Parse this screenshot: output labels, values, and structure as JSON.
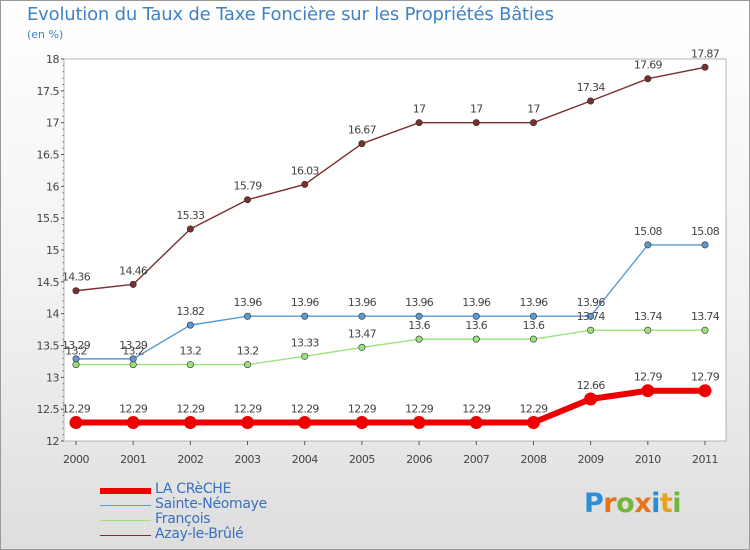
{
  "header": {
    "title": "Evolution du Taux de Taxe Foncière sur les Propriétés Bâties",
    "unit": "(en %)"
  },
  "brand": {
    "letters": [
      "P",
      "r",
      "o",
      "x",
      "i",
      "t",
      "i"
    ],
    "colors": [
      "#2a8fd8",
      "#e8731d",
      "#73b73a",
      "#e8731d",
      "#2a8fd8",
      "#e8a21d",
      "#73b73a"
    ]
  },
  "chart_data": {
    "type": "line",
    "title": "Evolution du Taux de Taxe Foncière sur les Propriétés Bâties",
    "ylabel": "(en %)",
    "xlabel": "",
    "ylim": [
      12,
      18
    ],
    "yticks": [
      "12",
      "12.5",
      "13",
      "13.5",
      "14",
      "14.5",
      "15",
      "15.5",
      "16",
      "16.5",
      "17",
      "17.5",
      "18"
    ],
    "grid": false,
    "legend_position": "bottom-left",
    "categories": [
      "2000",
      "2001",
      "2002",
      "2003",
      "2004",
      "2005",
      "2006",
      "2007",
      "2008",
      "2009",
      "2010",
      "2011"
    ],
    "series": [
      {
        "name": "LA CRèCHE",
        "color": "#ee0000",
        "values": [
          12.29,
          12.29,
          12.29,
          12.29,
          12.29,
          12.29,
          12.29,
          12.29,
          12.29,
          12.66,
          12.79,
          12.79
        ],
        "labels": [
          "12.29",
          "12.29",
          "12.29",
          "12.29",
          "12.29",
          "12.29",
          "12.29",
          "12.29",
          "12.29",
          "12.66",
          "12.79",
          "12.79"
        ]
      },
      {
        "name": "Sainte-Néomaye",
        "color": "#5a9ad4",
        "values": [
          13.29,
          13.29,
          13.82,
          13.96,
          13.96,
          13.96,
          13.96,
          13.96,
          13.96,
          13.96,
          15.08,
          15.08
        ],
        "labels": [
          "13.29",
          "13.29",
          "13.82",
          "13.96",
          "13.96",
          "13.96",
          "13.96",
          "13.96",
          "13.96",
          "13.96",
          "15.08",
          "15.08"
        ]
      },
      {
        "name": "François",
        "color": "#9be27a",
        "values": [
          13.2,
          13.2,
          13.2,
          13.2,
          13.33,
          13.47,
          13.6,
          13.6,
          13.6,
          13.74,
          13.74,
          13.74
        ],
        "labels": [
          "13.2",
          "13.2",
          "13.2",
          "13.2",
          "13.33",
          "13.47",
          "13.6",
          "13.6",
          "13.6",
          "13.74",
          "13.74",
          "13.74"
        ]
      },
      {
        "name": "Azay-le-Brûlé",
        "color": "#7b2e2e",
        "values": [
          14.36,
          14.46,
          15.33,
          15.79,
          16.03,
          16.67,
          17,
          17,
          17,
          17.34,
          17.69,
          17.87
        ],
        "labels": [
          "14.36",
          "14.46",
          "15.33",
          "15.79",
          "16.03",
          "16.67",
          "17",
          "17",
          "17",
          "17.34",
          "17.69",
          "17.87"
        ]
      }
    ]
  }
}
